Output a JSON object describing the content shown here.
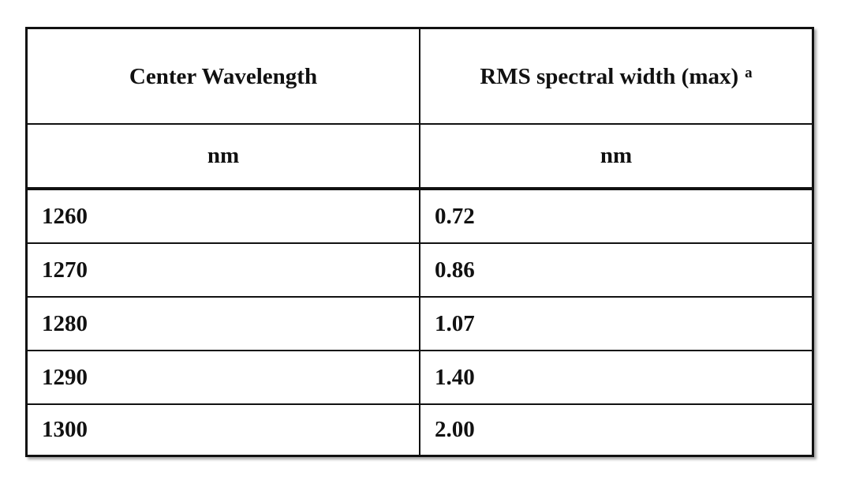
{
  "table": {
    "header": [
      "Center Wavelength",
      "RMS spectral width (max)"
    ],
    "header_note": "a",
    "units": [
      "nm",
      "nm"
    ],
    "rows": [
      [
        "1260",
        "0.72"
      ],
      [
        "1270",
        "0.86"
      ],
      [
        "1280",
        "1.07"
      ],
      [
        "1290",
        "1.40"
      ],
      [
        "1300",
        "2.00"
      ]
    ]
  }
}
